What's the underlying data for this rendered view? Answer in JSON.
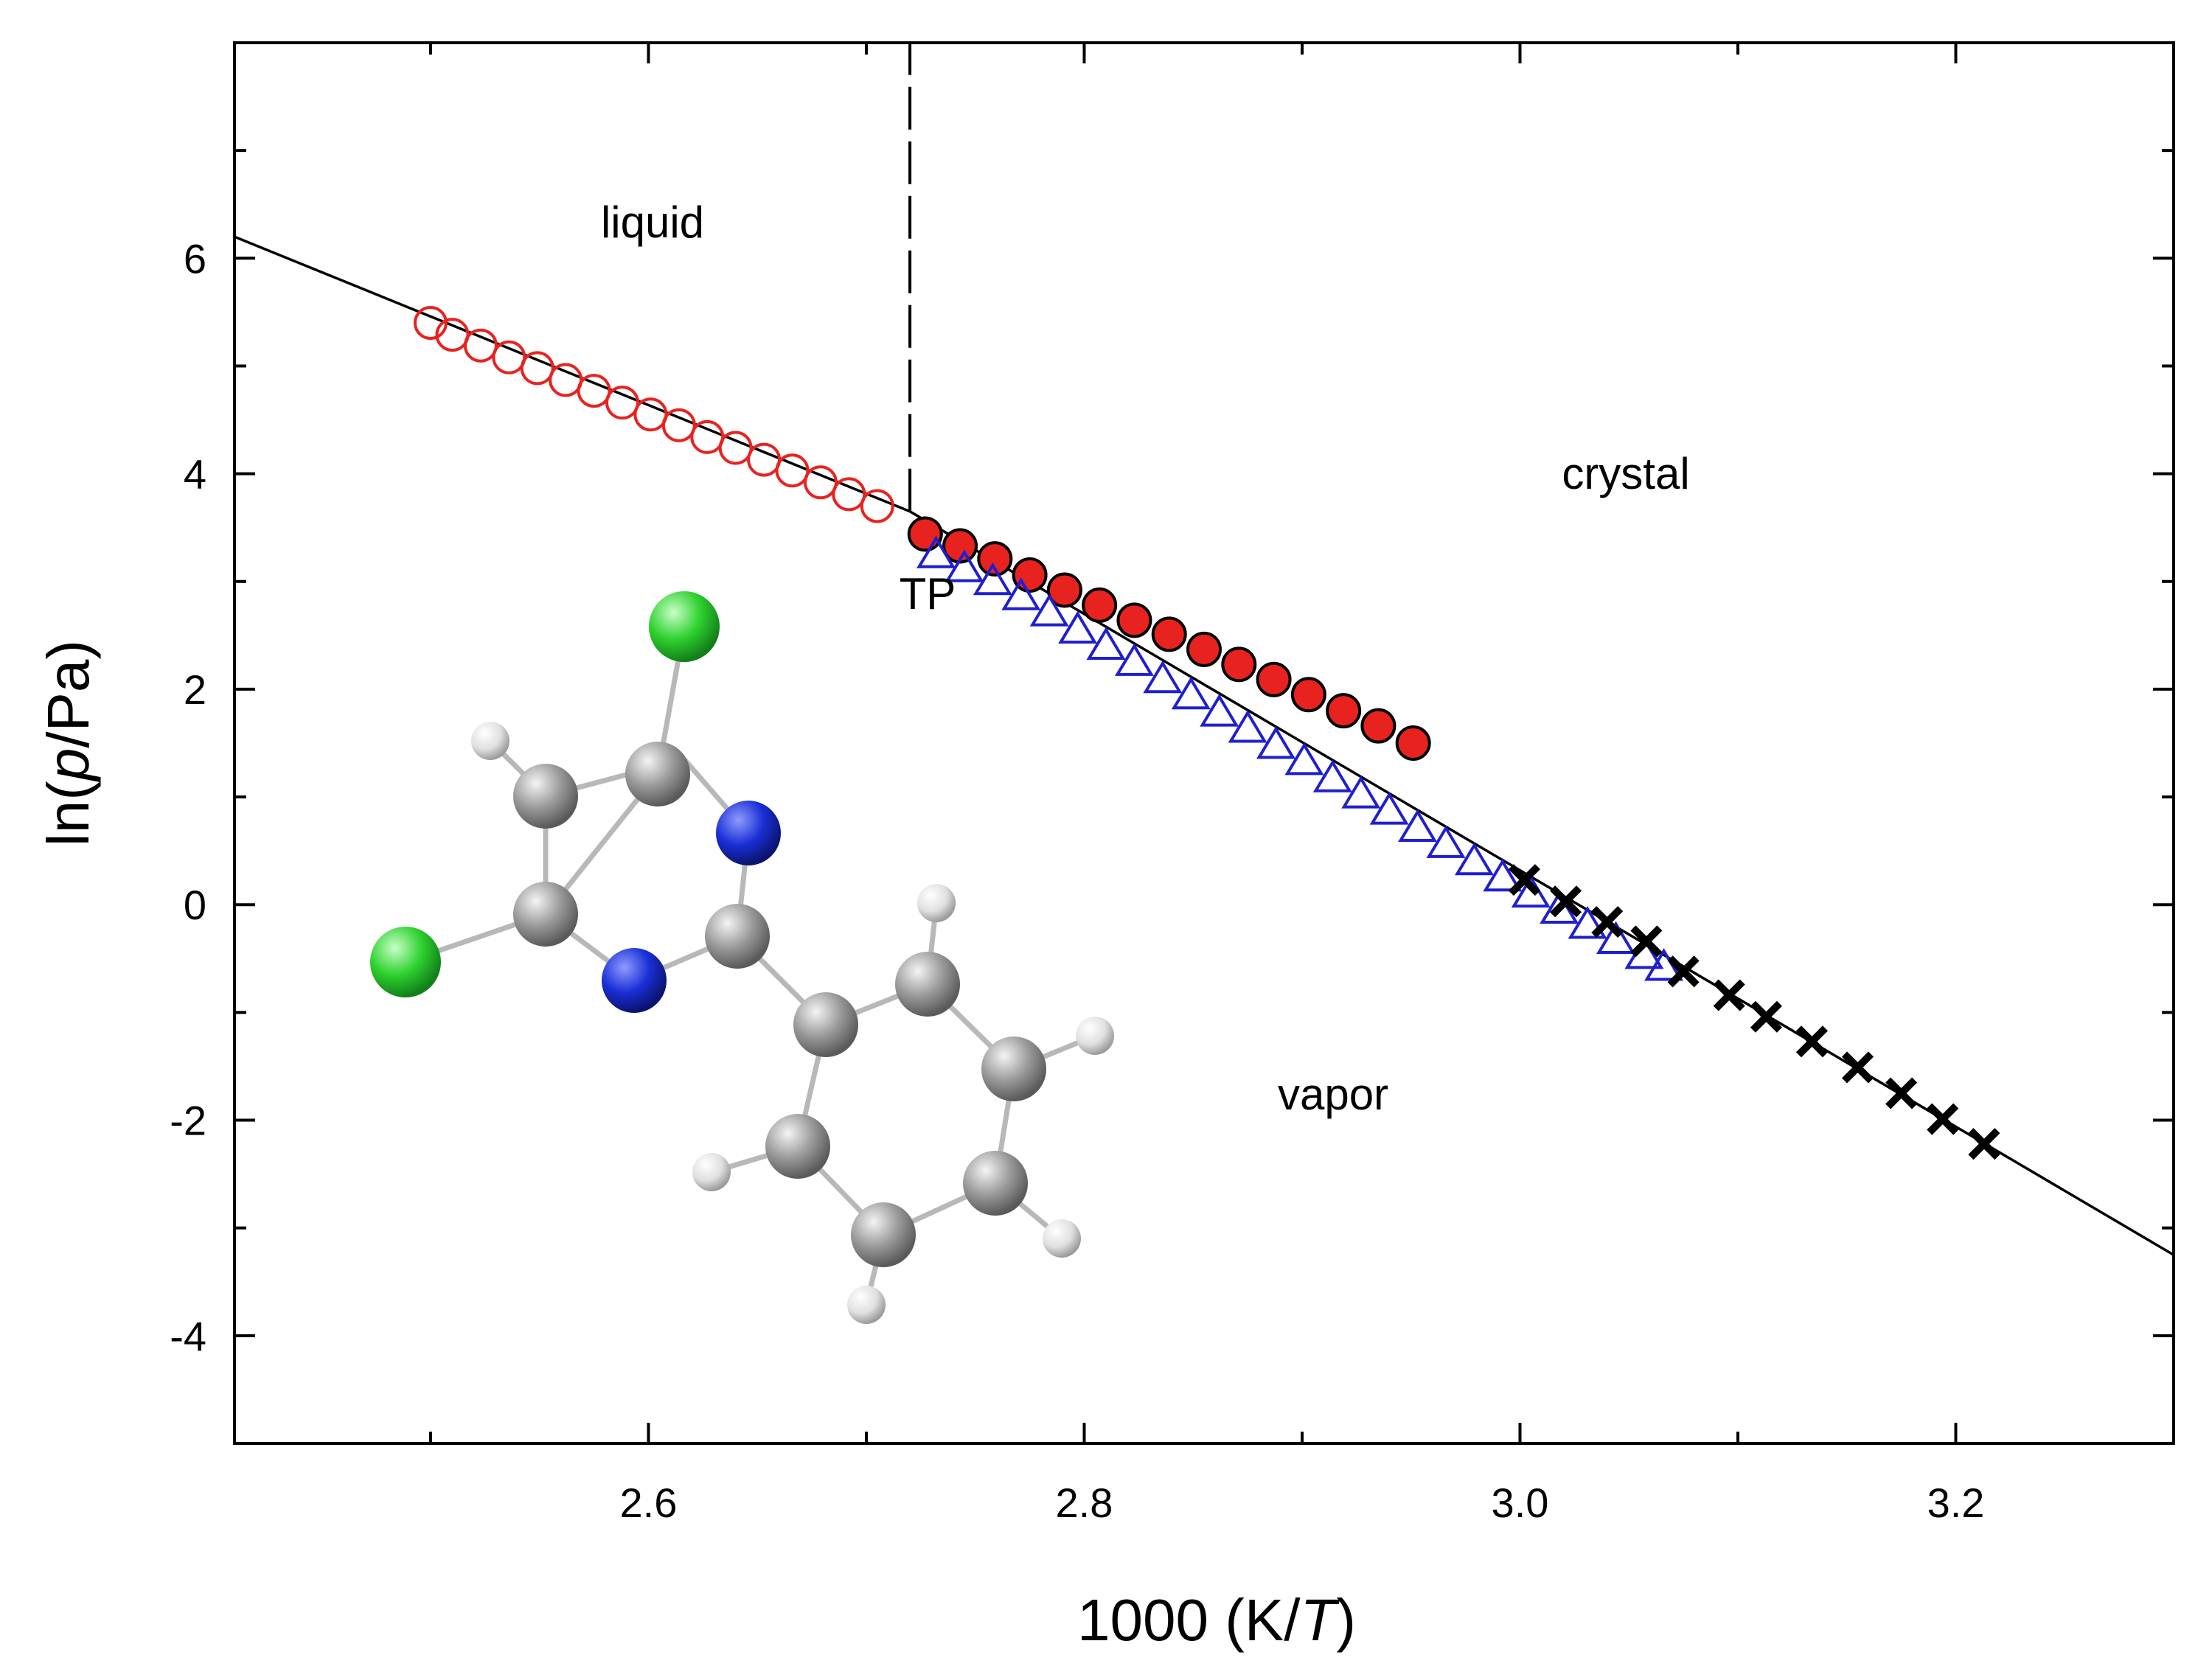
{
  "chart_data": {
    "type": "scatter",
    "xlabel_parts": [
      "1000 (K/",
      "T",
      ")"
    ],
    "ylabel_parts": [
      "ln(",
      "p",
      "/Pa)"
    ],
    "xlim": [
      2.41,
      3.3
    ],
    "ylim": [
      -5,
      8
    ],
    "x_major_ticks": [
      2.6,
      2.8,
      3.0,
      3.2
    ],
    "x_tick_labels": [
      "2.6",
      "2.8",
      "3.0",
      "3.2"
    ],
    "x_minor_ticks": [
      2.5,
      2.7,
      2.9,
      3.1
    ],
    "y_major_ticks": [
      -4,
      -2,
      0,
      2,
      4,
      6
    ],
    "y_tick_labels": [
      "-4",
      "-2",
      "0",
      "2",
      "4",
      "6"
    ],
    "y_minor_ticks": [
      -5,
      -3,
      -1,
      1,
      3,
      5,
      7
    ],
    "grid": false,
    "annotations": [
      {
        "text": "liquid",
        "x": 2.57,
        "y": 6.25
      },
      {
        "text": "crystal",
        "x": 2.99,
        "y": 4.0
      },
      {
        "text": "TP",
        "x": 2.71,
        "y": 3.0
      },
      {
        "text": "vapor",
        "x": 2.89,
        "y": -1.7
      }
    ],
    "triple_point_line": {
      "x": 2.72,
      "y_from": 3.65,
      "y_to": 8.0,
      "style": "dashed"
    },
    "fit_lines": [
      {
        "name": "liquid-fit",
        "x": [
          2.41,
          2.72
        ],
        "y": [
          6.2,
          3.65
        ]
      },
      {
        "name": "crystal-fit",
        "x": [
          2.72,
          3.3
        ],
        "y": [
          3.65,
          -3.25
        ]
      }
    ],
    "series": [
      {
        "name": "liquid-vapor",
        "marker": "open-circle",
        "color": "#e8231f",
        "x": [
          2.5,
          2.51,
          2.523,
          2.536,
          2.549,
          2.562,
          2.575,
          2.588,
          2.601,
          2.614,
          2.627,
          2.64,
          2.653,
          2.666,
          2.679,
          2.692,
          2.705
        ],
        "y": [
          5.4,
          5.29,
          5.19,
          5.08,
          4.98,
          4.87,
          4.77,
          4.66,
          4.55,
          4.45,
          4.34,
          4.24,
          4.13,
          4.03,
          3.92,
          3.81,
          3.7
        ]
      },
      {
        "name": "crystal-vapor-filled",
        "marker": "filled-circle",
        "color": "#e8231f",
        "x": [
          2.727,
          2.743,
          2.759,
          2.775,
          2.791,
          2.807,
          2.823,
          2.839,
          2.855,
          2.871,
          2.887,
          2.903,
          2.919,
          2.935,
          2.951
        ],
        "y": [
          3.44,
          3.33,
          3.21,
          3.06,
          2.92,
          2.78,
          2.64,
          2.51,
          2.37,
          2.23,
          2.09,
          1.95,
          1.8,
          1.66,
          1.5
        ]
      },
      {
        "name": "crystal-vapor-triangles",
        "marker": "open-triangle",
        "color": "#1f1fcf",
        "x": [
          2.732,
          2.745,
          2.758,
          2.771,
          2.784,
          2.797,
          2.81,
          2.823,
          2.836,
          2.849,
          2.862,
          2.875,
          2.888,
          2.901,
          2.914,
          2.927,
          2.94,
          2.953,
          2.966,
          2.979,
          2.992,
          3.005,
          3.018,
          3.031,
          3.044,
          3.057,
          3.066
        ],
        "y": [
          3.25,
          3.12,
          3.0,
          2.86,
          2.71,
          2.55,
          2.4,
          2.25,
          2.09,
          1.94,
          1.78,
          1.63,
          1.48,
          1.33,
          1.17,
          1.02,
          0.87,
          0.71,
          0.56,
          0.4,
          0.25,
          0.1,
          -0.05,
          -0.19,
          -0.33,
          -0.47,
          -0.58
        ]
      },
      {
        "name": "crystal-vapor-crosses",
        "marker": "cross",
        "color": "#000000",
        "x": [
          3.002,
          3.021,
          3.04,
          3.058,
          3.075,
          3.096,
          3.113,
          3.134,
          3.155,
          3.175,
          3.194,
          3.213
        ],
        "y": [
          0.23,
          0.03,
          -0.16,
          -0.34,
          -0.62,
          -0.84,
          -1.04,
          -1.27,
          -1.51,
          -1.75,
          -1.99,
          -2.22
        ]
      }
    ],
    "molecule_inset": {
      "description_colors": {
        "carbon": "#9a9a9a",
        "nitrogen": "#1a2fd6",
        "chlorine": "#2ed12e",
        "hydrogen": "#e0e0e0"
      }
    }
  }
}
